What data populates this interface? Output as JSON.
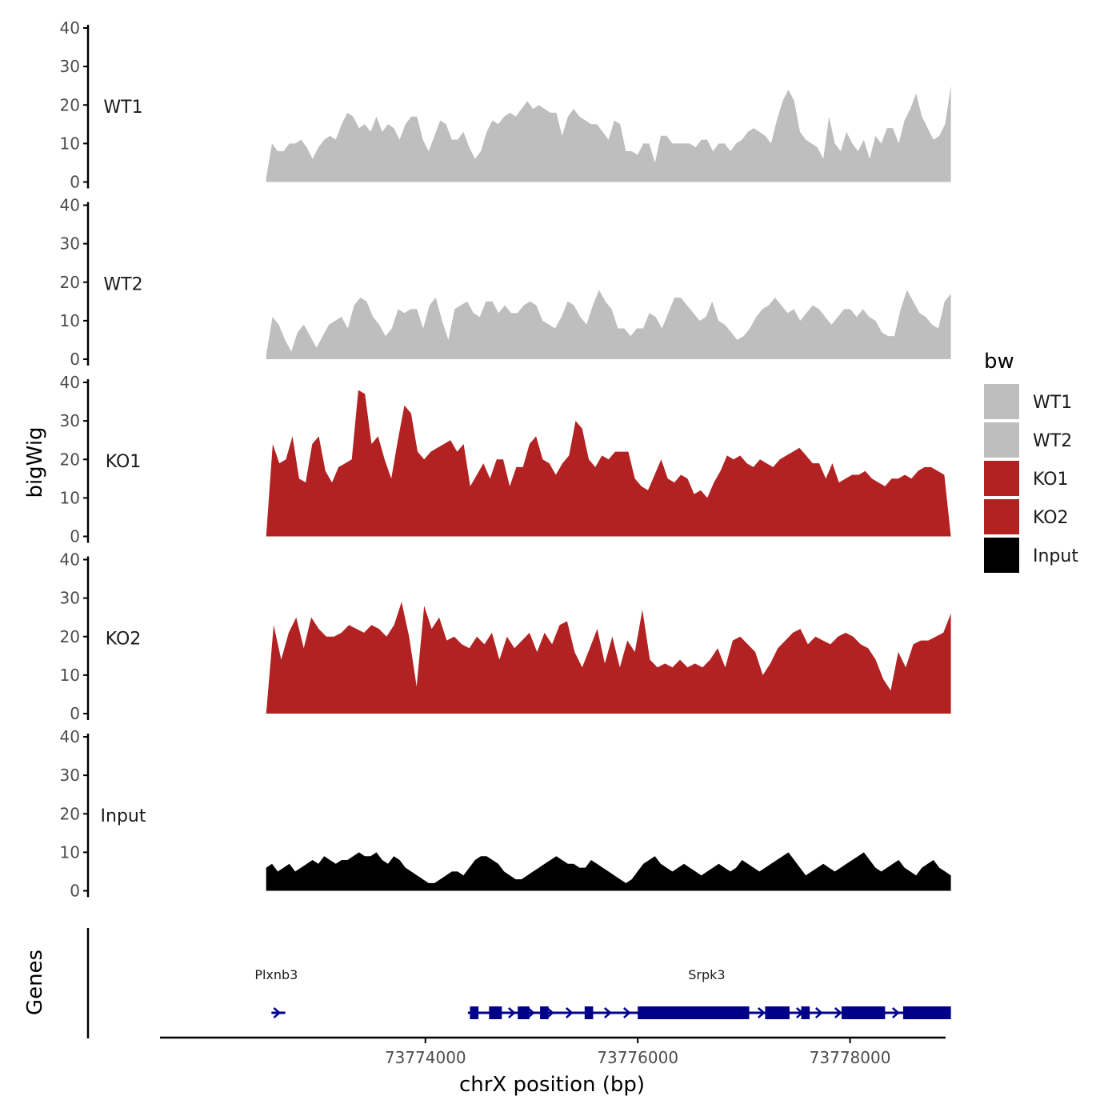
{
  "chart_data": {
    "type": "area",
    "ylabel": "bigWig",
    "xlabel": "chrX position (bp)",
    "xlim": [
      73771500,
      73778900
    ],
    "x_ticks": [
      73774000,
      73776000,
      73778000
    ],
    "x_tick_labels": [
      "73774000",
      "73776000",
      "73778000"
    ],
    "ylim": [
      0,
      40
    ],
    "y_ticks": [
      0,
      10,
      20,
      30,
      40
    ],
    "y_tick_labels": [
      "0",
      "10",
      "20",
      "30",
      "40"
    ],
    "legend": {
      "title": "bw",
      "position": "right",
      "entries": [
        {
          "label": "WT1",
          "color": "#BEBEBE"
        },
        {
          "label": "WT2",
          "color": "#BEBEBE"
        },
        {
          "label": "KO1",
          "color": "#B22222"
        },
        {
          "label": "KO2",
          "color": "#B22222"
        },
        {
          "label": "Input",
          "color": "#000000"
        }
      ]
    },
    "x_start": 73772500,
    "x_end": 73778950,
    "series": [
      {
        "name": "WT1",
        "color": "#BEBEBE",
        "values": [
          1,
          10,
          8,
          8,
          10,
          10,
          11,
          9,
          6,
          9,
          11,
          12,
          11,
          15,
          18,
          17,
          14,
          15,
          13,
          17,
          13,
          15,
          14,
          11,
          15,
          17,
          17,
          11,
          8,
          12,
          16,
          15,
          11,
          11,
          13,
          9,
          6,
          8,
          13,
          16,
          15,
          17,
          18,
          17,
          19,
          21,
          19,
          20,
          19,
          18,
          18,
          12,
          17,
          19,
          17,
          16,
          15,
          15,
          13,
          11,
          16,
          15,
          8,
          8,
          7,
          10,
          10,
          5,
          12,
          12,
          10,
          10,
          10,
          10,
          9,
          11,
          11,
          8,
          10,
          10,
          8,
          10,
          11,
          13,
          14,
          13,
          12,
          10,
          16,
          21,
          24,
          21,
          13,
          11,
          10,
          9,
          6,
          17,
          10,
          8,
          13,
          10,
          8,
          11,
          6,
          12,
          10,
          14,
          14,
          10,
          16,
          19,
          23,
          17,
          14,
          11,
          12,
          15,
          25
        ]
      },
      {
        "name": "WT2",
        "color": "#BEBEBE",
        "values": [
          1,
          11,
          9,
          5,
          2,
          7,
          9,
          6,
          3,
          6,
          9,
          10,
          11,
          8,
          14,
          16,
          15,
          11,
          9,
          6,
          8,
          13,
          12,
          13,
          13,
          8,
          14,
          16,
          10,
          5,
          13,
          14,
          15,
          12,
          11,
          15,
          15,
          12,
          14,
          12,
          12,
          14,
          15,
          14,
          10,
          9,
          8,
          11,
          15,
          14,
          11,
          9,
          14,
          18,
          15,
          13,
          8,
          8,
          6,
          8,
          8,
          12,
          11,
          8,
          12,
          16,
          16,
          14,
          12,
          10,
          11,
          15,
          10,
          9,
          7,
          5,
          6,
          8,
          11,
          13,
          14,
          16,
          14,
          12,
          13,
          10,
          12,
          14,
          13,
          11,
          9,
          11,
          13,
          13,
          11,
          13,
          11,
          10,
          7,
          6,
          6,
          13,
          18,
          15,
          12,
          11,
          9,
          8,
          15,
          17
        ]
      },
      {
        "name": "KO1",
        "color": "#B22222",
        "values": [
          0,
          24,
          19,
          20,
          26,
          15,
          14,
          24,
          26,
          17,
          14,
          18,
          19,
          20,
          38,
          37,
          24,
          26,
          20,
          15,
          25,
          34,
          32,
          22,
          20,
          22,
          23,
          24,
          25,
          22,
          24,
          13,
          16,
          19,
          15,
          20,
          20,
          13,
          18,
          18,
          24,
          26,
          20,
          19,
          16,
          19,
          21,
          30,
          28,
          20,
          18,
          21,
          20,
          22,
          22,
          22,
          15,
          13,
          12,
          16,
          20,
          15,
          14,
          16,
          15,
          11,
          12,
          10,
          14,
          17,
          21,
          20,
          21,
          19,
          18,
          20,
          19,
          18,
          20,
          21,
          22,
          23,
          21,
          19,
          19,
          15,
          19,
          14,
          15,
          16,
          16,
          17,
          15,
          14,
          13,
          15,
          15,
          16,
          15,
          17,
          18,
          18,
          17,
          16,
          0
        ]
      },
      {
        "name": "KO2",
        "color": "#B22222",
        "values": [
          0,
          23,
          14,
          21,
          25,
          17,
          25,
          22,
          20,
          20,
          21,
          23,
          22,
          21,
          23,
          22,
          20,
          23,
          29,
          20,
          7,
          28,
          22,
          25,
          19,
          20,
          18,
          17,
          20,
          18,
          21,
          14,
          20,
          17,
          19,
          21,
          16,
          21,
          18,
          23,
          24,
          16,
          12,
          17,
          22,
          13,
          20,
          12,
          19,
          16,
          27,
          14,
          12,
          13,
          12,
          14,
          12,
          13,
          12,
          14,
          17,
          12,
          19,
          20,
          18,
          16,
          10,
          13,
          17,
          19,
          21,
          22,
          18,
          20,
          19,
          18,
          20,
          21,
          20,
          18,
          17,
          14,
          9,
          6,
          16,
          12,
          18,
          19,
          19,
          20,
          21,
          26
        ]
      },
      {
        "name": "Input",
        "color": "#000000",
        "values": [
          6,
          7,
          5,
          6,
          7,
          5,
          6,
          7,
          8,
          7,
          9,
          8,
          7,
          8,
          8,
          9,
          10,
          9,
          9,
          10,
          8,
          7,
          9,
          8,
          6,
          5,
          4,
          3,
          2,
          2,
          3,
          4,
          5,
          5,
          4,
          6,
          8,
          9,
          9,
          8,
          7,
          5,
          4,
          3,
          3,
          4,
          5,
          6,
          7,
          8,
          9,
          8,
          7,
          7,
          6,
          6,
          8,
          7,
          6,
          5,
          4,
          3,
          2,
          3,
          5,
          7,
          8,
          9,
          7,
          6,
          5,
          6,
          7,
          6,
          5,
          4,
          5,
          6,
          7,
          6,
          5,
          6,
          8,
          7,
          6,
          5,
          6,
          7,
          8,
          9,
          10,
          8,
          6,
          4,
          5,
          6,
          7,
          6,
          5,
          6,
          7,
          8,
          9,
          10,
          8,
          6,
          5,
          6,
          7,
          8,
          6,
          5,
          4,
          6,
          7,
          8,
          6,
          5,
          4
        ]
      }
    ],
    "genes_track": {
      "label": "Genes",
      "genes": [
        {
          "name": "Plxnb3",
          "start": 73772550,
          "end": 73772680,
          "exons": []
        },
        {
          "name": "Srpk3",
          "start": 73774400,
          "end": 73778950,
          "exons": [
            [
              73774420,
              73774500
            ],
            [
              73774600,
              73774720
            ],
            [
              73774870,
              73774980
            ],
            [
              73775080,
              73775160
            ],
            [
              73775500,
              73775580
            ],
            [
              73776000,
              73777050
            ],
            [
              73777200,
              73777430
            ],
            [
              73777540,
              73777620
            ],
            [
              73777920,
              73778330
            ],
            [
              73778500,
              73778950
            ]
          ]
        }
      ]
    }
  }
}
